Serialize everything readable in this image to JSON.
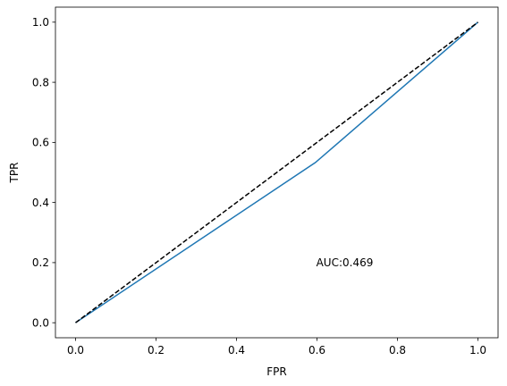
{
  "chart_data": {
    "type": "line",
    "title": "",
    "xlabel": "FPR",
    "ylabel": "TPR",
    "xlim": [
      -0.05,
      1.05
    ],
    "ylim": [
      -0.05,
      1.05
    ],
    "xticks": [
      0.0,
      0.2,
      0.4,
      0.6,
      0.8,
      1.0
    ],
    "yticks": [
      0.0,
      0.2,
      0.4,
      0.6,
      0.8,
      1.0
    ],
    "xtick_labels": [
      "0.0",
      "0.2",
      "0.4",
      "0.6",
      "0.8",
      "1.0"
    ],
    "ytick_labels": [
      "0.0",
      "0.2",
      "0.4",
      "0.6",
      "0.8",
      "1.0"
    ],
    "grid": false,
    "series": [
      {
        "x": [
          0.0,
          0.596,
          1.0
        ],
        "y": [
          0.0,
          0.533,
          1.0
        ],
        "color": "#1f77b4",
        "style": "solid"
      },
      {
        "x": [
          0.0,
          1.0
        ],
        "y": [
          0.0,
          1.0
        ],
        "color": "#000000",
        "style": "dashed"
      }
    ],
    "annotations": [
      {
        "text": "AUC:0.469",
        "x": 0.598,
        "y": 0.2
      }
    ]
  }
}
